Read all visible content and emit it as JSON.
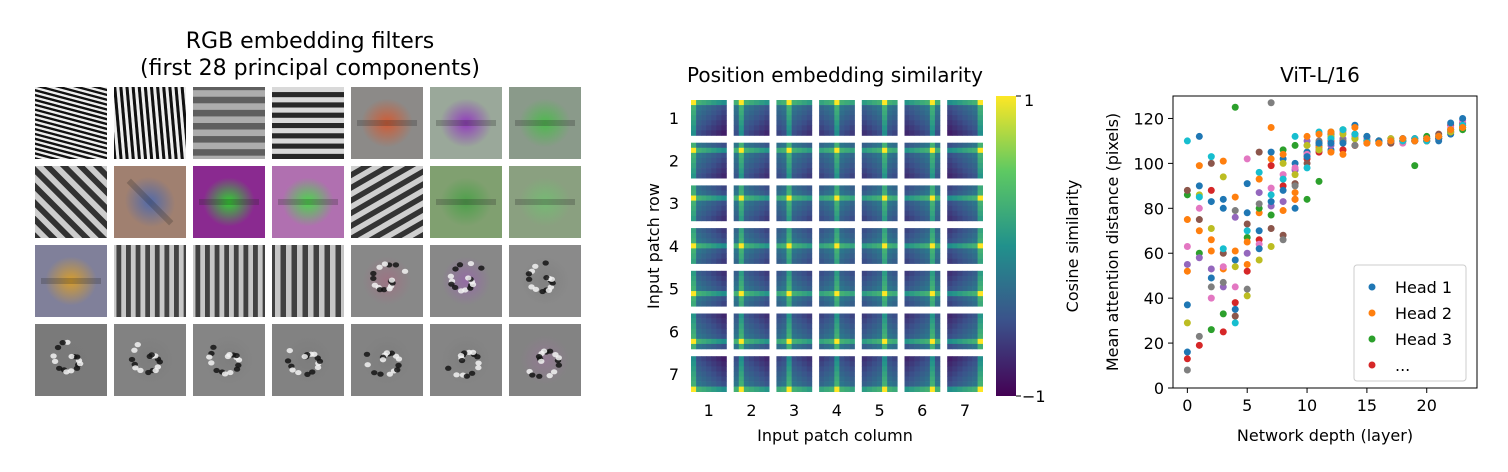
{
  "panels": {
    "filters": {
      "title_line1": "RGB embedding filters",
      "title_line2": "(first 28 principal components)",
      "rows": 4,
      "cols": 7,
      "tiles": [
        {
          "type": "grating",
          "angle": 15,
          "freq": 0.95,
          "bg": "#808080",
          "tint": "#888888",
          "amp": 1.0
        },
        {
          "type": "grating",
          "angle": 85,
          "freq": 0.85,
          "bg": "#808080",
          "tint": "#888888",
          "amp": 1.0
        },
        {
          "type": "grating",
          "angle": 0,
          "freq": 0.35,
          "bg": "#8a8a8a",
          "tint": "#8c8c8c",
          "amp": 0.35
        },
        {
          "type": "grating",
          "angle": 0,
          "freq": 0.55,
          "bg": "#888888",
          "tint": "#888888",
          "amp": 0.8
        },
        {
          "type": "blob",
          "angle": 0,
          "freq": 0.5,
          "bg": "#8c8a88",
          "tint": "#e05020",
          "amp": 0.8
        },
        {
          "type": "blob",
          "angle": 0,
          "freq": 0.3,
          "bg": "#9aa89a",
          "tint": "#9030c0",
          "amp": 0.9
        },
        {
          "type": "blob",
          "angle": 0,
          "freq": 0.45,
          "bg": "#8a9a8a",
          "tint": "#40c040",
          "amp": 0.8
        },
        {
          "type": "grating",
          "angle": 45,
          "freq": 0.45,
          "bg": "#828282",
          "tint": "#999999",
          "amp": 0.7
        },
        {
          "type": "blob",
          "angle": 45,
          "freq": 0.3,
          "bg": "#a08070",
          "tint": "#3060c0",
          "amp": 0.7
        },
        {
          "type": "blob",
          "angle": 0,
          "freq": 0.2,
          "bg": "#8a2a90",
          "tint": "#30d030",
          "amp": 1.0
        },
        {
          "type": "blob",
          "angle": 0,
          "freq": 0.25,
          "bg": "#b070b0",
          "tint": "#40e040",
          "amp": 0.9
        },
        {
          "type": "grating",
          "angle": -30,
          "freq": 0.5,
          "bg": "#868686",
          "tint": "#888888",
          "amp": 0.7
        },
        {
          "type": "blob",
          "angle": 0,
          "freq": 0.5,
          "bg": "#80a070",
          "tint": "#40a040",
          "amp": 0.8
        },
        {
          "type": "blob",
          "angle": 0,
          "freq": 0.45,
          "bg": "#8aa080",
          "tint": "#70c070",
          "amp": 0.8
        },
        {
          "type": "blob",
          "angle": 0,
          "freq": 0.3,
          "bg": "#80809a",
          "tint": "#e0a020",
          "amp": 0.9
        },
        {
          "type": "grating",
          "angle": 90,
          "freq": 0.6,
          "bg": "#909090",
          "tint": "#d0d050",
          "amp": 0.6
        },
        {
          "type": "grating",
          "angle": 90,
          "freq": 0.6,
          "bg": "#8a8a8a",
          "tint": "#60b060",
          "amp": 0.6
        },
        {
          "type": "grating",
          "angle": 90,
          "freq": 0.5,
          "bg": "#8a8a8a",
          "tint": "#40a040",
          "amp": 0.6
        },
        {
          "type": "noise",
          "angle": 0,
          "freq": 0.6,
          "bg": "#888888",
          "tint": "#b06080",
          "amp": 0.6
        },
        {
          "type": "noise",
          "angle": 0,
          "freq": 0.6,
          "bg": "#888888",
          "tint": "#a050c0",
          "amp": 0.6
        },
        {
          "type": "noise",
          "angle": 0,
          "freq": 0.6,
          "bg": "#8a8a8a",
          "tint": "#777777",
          "amp": 0.6
        },
        {
          "type": "noise",
          "angle": 0,
          "freq": 0.7,
          "bg": "#7a7a7a",
          "tint": "#777777",
          "amp": 0.6
        },
        {
          "type": "noise",
          "angle": 0,
          "freq": 0.7,
          "bg": "#828282",
          "tint": "#777777",
          "amp": 0.6
        },
        {
          "type": "noise",
          "angle": 0,
          "freq": 0.7,
          "bg": "#858585",
          "tint": "#777777",
          "amp": 0.6
        },
        {
          "type": "noise",
          "angle": 0,
          "freq": 0.7,
          "bg": "#828282",
          "tint": "#777777",
          "amp": 0.6
        },
        {
          "type": "noise",
          "angle": 0,
          "freq": 0.7,
          "bg": "#838383",
          "tint": "#777777",
          "amp": 0.6
        },
        {
          "type": "noise",
          "angle": 0,
          "freq": 0.7,
          "bg": "#858585",
          "tint": "#777777",
          "amp": 0.6
        },
        {
          "type": "noise",
          "angle": 0,
          "freq": 0.7,
          "bg": "#838383",
          "tint": "#a070a0",
          "amp": 0.6
        }
      ]
    },
    "similarity": {
      "title": "Position embedding similarity",
      "ylabel": "Input patch row",
      "xlabel": "Input patch column",
      "row_ticks": [
        "1",
        "2",
        "3",
        "4",
        "5",
        "6",
        "7"
      ],
      "col_ticks": [
        "1",
        "2",
        "3",
        "4",
        "5",
        "6",
        "7"
      ],
      "colorbar_label": "Cosine similarity",
      "colorbar_ticks": [
        "1",
        "−1"
      ],
      "colormap": [
        "#440154",
        "#3b528b",
        "#21918c",
        "#5ec962",
        "#fde725"
      ]
    }
  },
  "chart_data": [
    {
      "type": "heatmap",
      "title": "Position embedding similarity",
      "xlabel": "Input patch column",
      "ylabel": "Input patch row",
      "rows": 7,
      "cols": 7,
      "colorbar_label": "Cosine similarity",
      "vmin": -1,
      "vmax": 1
    },
    {
      "type": "scatter",
      "title": "ViT-L/16",
      "xlabel": "Network depth (layer)",
      "ylabel": "Mean attention distance (pixels)",
      "xlim": [
        -1.2,
        24.2
      ],
      "ylim": [
        0,
        130
      ],
      "xticks": [
        0,
        5,
        10,
        15,
        20
      ],
      "yticks": [
        0,
        20,
        40,
        60,
        80,
        100,
        120
      ],
      "legend": {
        "position": "lower right",
        "entries": [
          "Head 1",
          "Head 2",
          "Head 3",
          "..."
        ]
      },
      "legend_colors": [
        "#1f77b4",
        "#ff7f0e",
        "#2ca02c",
        "#d62728"
      ],
      "colors": [
        "#1f77b4",
        "#ff7f0e",
        "#2ca02c",
        "#d62728",
        "#9467bd",
        "#8c564b",
        "#e377c2",
        "#7f7f7f",
        "#bcbd22",
        "#17becf"
      ],
      "series": [
        {
          "values": [
            37,
            90,
            83,
            80,
            57,
            78,
            70,
            105,
            102,
            100,
            105,
            108,
            106,
            110,
            112,
            110,
            110,
            110,
            111,
            110,
            111,
            110,
            113,
            116
          ]
        },
        {
          "values": [
            75,
            99,
            61,
            53,
            85,
            55,
            78,
            102,
            79,
            87,
            104,
            107,
            105,
            106,
            108,
            110,
            109,
            110,
            110,
            111,
            110,
            112,
            114,
            116
          ]
        },
        {
          "values": [
            86,
            60,
            26,
            33,
            125,
            67,
            80,
            77,
            106,
            108,
            84,
            92,
            114,
            115,
            111,
            112,
            110,
            110,
            110,
            99,
            112,
            112,
            114,
            115
          ]
        },
        {
          "values": [
            13,
            19,
            88,
            25,
            38,
            52,
            66,
            99,
            90,
            84,
            102,
            105,
            110,
            106,
            108,
            110,
            110,
            109,
            110,
            110,
            110,
            111,
            117,
            118
          ]
        },
        {
          "values": [
            55,
            58,
            53,
            45,
            76,
            60,
            87,
            81,
            83,
            97,
            110,
            106,
            108,
            111,
            113,
            109,
            110,
            111,
            110,
            111,
            110,
            112,
            114,
            118
          ]
        },
        {
          "values": [
            88,
            75,
            100,
            60,
            32,
            73,
            105,
            71,
            68,
            91,
            100,
            109,
            113,
            110,
            113,
            110,
            110,
            109,
            110,
            110,
            110,
            113,
            115,
            117
          ]
        },
        {
          "values": [
            63,
            80,
            40,
            54,
            45,
            102,
            64,
            89,
            95,
            98,
            104,
            110,
            111,
            114,
            112,
            111,
            110,
            110,
            109,
            110,
            110,
            112,
            116,
            119
          ]
        },
        {
          "values": [
            8,
            23,
            45,
            47,
            79,
            44,
            82,
            127,
            66,
            90,
            108,
            110,
            112,
            110,
            108,
            112,
            109,
            110,
            110,
            111,
            111,
            111,
            114,
            116
          ]
        },
        {
          "values": [
            29,
            86,
            71,
            94,
            54,
            41,
            57,
            63,
            100,
            95,
            108,
            106,
            112,
            113,
            111,
            110,
            110,
            111,
            110,
            110,
            110,
            112,
            114,
            116
          ]
        },
        {
          "values": [
            110,
            85,
            103,
            62,
            29,
            70,
            96,
            86,
            93,
            112,
            98,
            114,
            111,
            115,
            113,
            110,
            110,
            110,
            110,
            111,
            110,
            112,
            115,
            117
          ]
        },
        {
          "values": [
            16,
            112,
            49,
            84,
            35,
            91,
            62,
            83,
            88,
            80,
            103,
            109,
            109,
            109,
            117,
            112,
            110,
            110,
            111,
            110,
            111,
            111,
            118,
            120
          ]
        },
        {
          "values": [
            52,
            70,
            66,
            101,
            61,
            65,
            93,
            116,
            104,
            84,
            112,
            113,
            114,
            104,
            116,
            109,
            109,
            110,
            111,
            110,
            111,
            112,
            115,
            116
          ]
        }
      ]
    }
  ]
}
